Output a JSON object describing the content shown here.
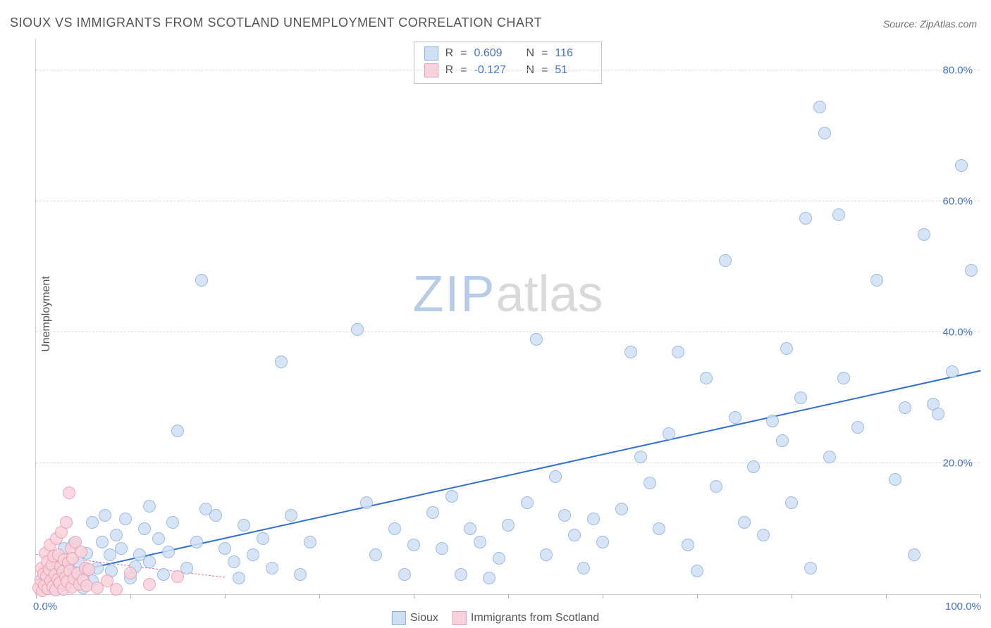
{
  "title": "SIOUX VS IMMIGRANTS FROM SCOTLAND UNEMPLOYMENT CORRELATION CHART",
  "source_label": "Source: ",
  "source_name": "ZipAtlas.com",
  "y_axis_title": "Unemployment",
  "watermark_a": "ZIP",
  "watermark_b": "atlas",
  "chart": {
    "type": "scatter",
    "background_color": "#ffffff",
    "grid_color": "#d8d8d8",
    "axis_color": "#d0d0d0",
    "xlim": [
      0,
      100
    ],
    "ylim": [
      0,
      85
    ],
    "x_ticks": [
      0,
      10,
      20,
      30,
      40,
      50,
      60,
      70,
      80,
      90,
      100
    ],
    "x_tick_labels": {
      "0": "0.0%",
      "100": "100.0%"
    },
    "y_ticks": [
      20,
      40,
      60,
      80
    ],
    "y_tick_labels": {
      "20": "20.0%",
      "40": "40.0%",
      "60": "60.0%",
      "80": "80.0%"
    },
    "x_label_color": "#4472c4",
    "y_label_color": "#4472c4",
    "label_fontsize": 15,
    "marker_radius": 9,
    "marker_border_width": 1.2,
    "series": [
      {
        "name": "Sioux",
        "fill": "#cfe0f5",
        "stroke": "#8ab0e0",
        "r_value": "0.609",
        "n_value": "116",
        "trend": {
          "x1": 0,
          "y1": 2,
          "x2": 100,
          "y2": 34,
          "color": "#2f6fd0",
          "width": 2.5,
          "dash": "solid"
        },
        "points": [
          [
            1,
            1
          ],
          [
            1.5,
            2
          ],
          [
            2,
            0.8
          ],
          [
            2.2,
            3
          ],
          [
            2.5,
            1.2
          ],
          [
            2.7,
            2.4
          ],
          [
            3,
            4.5
          ],
          [
            3,
            7
          ],
          [
            3.2,
            1.5
          ],
          [
            3.5,
            2.2
          ],
          [
            4,
            7.8
          ],
          [
            4,
            3.2
          ],
          [
            4.5,
            5
          ],
          [
            5,
            1
          ],
          [
            5.2,
            3.6
          ],
          [
            5.4,
            6.2
          ],
          [
            6,
            11
          ],
          [
            6,
            2
          ],
          [
            6.5,
            4
          ],
          [
            7,
            8
          ],
          [
            7.3,
            12
          ],
          [
            7.8,
            6
          ],
          [
            8,
            3.5
          ],
          [
            8.5,
            9
          ],
          [
            9,
            7
          ],
          [
            9.5,
            11.5
          ],
          [
            10,
            2.5
          ],
          [
            10.5,
            4.2
          ],
          [
            11,
            6
          ],
          [
            11.5,
            10
          ],
          [
            12,
            5
          ],
          [
            12,
            13.5
          ],
          [
            13,
            8.5
          ],
          [
            13.5,
            3
          ],
          [
            14,
            6.5
          ],
          [
            14.5,
            11
          ],
          [
            15,
            25
          ],
          [
            16,
            4
          ],
          [
            17,
            8
          ],
          [
            17.5,
            48
          ],
          [
            18,
            13
          ],
          [
            19,
            12
          ],
          [
            20,
            7
          ],
          [
            21,
            5
          ],
          [
            21.5,
            2.5
          ],
          [
            22,
            10.5
          ],
          [
            23,
            6
          ],
          [
            24,
            8.5
          ],
          [
            25,
            4
          ],
          [
            26,
            35.5
          ],
          [
            27,
            12
          ],
          [
            28,
            3
          ],
          [
            29,
            8
          ],
          [
            34,
            40.5
          ],
          [
            35,
            14
          ],
          [
            36,
            6
          ],
          [
            38,
            10
          ],
          [
            39,
            3
          ],
          [
            40,
            7.5
          ],
          [
            42,
            12.5
          ],
          [
            43,
            7
          ],
          [
            44,
            15
          ],
          [
            45,
            3
          ],
          [
            46,
            10
          ],
          [
            47,
            8
          ],
          [
            48,
            2.5
          ],
          [
            49,
            5.5
          ],
          [
            50,
            10.5
          ],
          [
            52,
            14
          ],
          [
            53,
            39
          ],
          [
            54,
            6
          ],
          [
            55,
            18
          ],
          [
            56,
            12
          ],
          [
            57,
            9
          ],
          [
            58,
            4
          ],
          [
            59,
            11.5
          ],
          [
            60,
            8
          ],
          [
            62,
            13
          ],
          [
            63,
            37
          ],
          [
            64,
            21
          ],
          [
            65,
            17
          ],
          [
            66,
            10
          ],
          [
            67,
            24.5
          ],
          [
            68,
            37
          ],
          [
            69,
            7.5
          ],
          [
            70,
            3.5
          ],
          [
            71,
            33
          ],
          [
            72,
            16.5
          ],
          [
            73,
            51
          ],
          [
            74,
            27
          ],
          [
            75,
            11
          ],
          [
            76,
            19.5
          ],
          [
            77,
            9
          ],
          [
            78,
            26.5
          ],
          [
            79,
            23.5
          ],
          [
            79.5,
            37.5
          ],
          [
            80,
            14
          ],
          [
            81,
            30
          ],
          [
            81.5,
            57.5
          ],
          [
            82,
            4
          ],
          [
            83,
            74.5
          ],
          [
            83.5,
            70.5
          ],
          [
            84,
            21
          ],
          [
            85,
            58
          ],
          [
            85.5,
            33
          ],
          [
            87,
            25.5
          ],
          [
            89,
            48
          ],
          [
            91,
            17.5
          ],
          [
            92,
            28.5
          ],
          [
            93,
            6
          ],
          [
            94,
            55
          ],
          [
            95,
            29
          ],
          [
            95.5,
            27.5
          ],
          [
            97,
            34
          ],
          [
            98,
            65.5
          ],
          [
            99,
            49.5
          ]
        ]
      },
      {
        "name": "Immigrants from Scotland",
        "fill": "#f8d2dc",
        "stroke": "#e89ab0",
        "r_value": "-0.127",
        "n_value": "51",
        "trend": {
          "x1": 0,
          "y1": 6,
          "x2": 20,
          "y2": 2.5,
          "color": "#e07090",
          "width": 1.5,
          "dash": "dashed"
        },
        "points": [
          [
            0.3,
            1
          ],
          [
            0.5,
            2.2
          ],
          [
            0.6,
            4
          ],
          [
            0.7,
            0.5
          ],
          [
            0.8,
            3.1
          ],
          [
            0.9,
            1.4
          ],
          [
            1.0,
            6.2
          ],
          [
            1.1,
            2.8
          ],
          [
            1.2,
            5.0
          ],
          [
            1.3,
            0.9
          ],
          [
            1.4,
            3.8
          ],
          [
            1.5,
            7.5
          ],
          [
            1.6,
            2.0
          ],
          [
            1.7,
            4.5
          ],
          [
            1.8,
            1.2
          ],
          [
            1.9,
            5.8
          ],
          [
            2.0,
            3.0
          ],
          [
            2.1,
            0.6
          ],
          [
            2.2,
            8.5
          ],
          [
            2.3,
            2.3
          ],
          [
            2.4,
            6.0
          ],
          [
            2.5,
            1.7
          ],
          [
            2.6,
            4.2
          ],
          [
            2.7,
            9.5
          ],
          [
            2.8,
            3.4
          ],
          [
            2.9,
            0.8
          ],
          [
            3.0,
            5.3
          ],
          [
            3.1,
            2.6
          ],
          [
            3.2,
            11.0
          ],
          [
            3.3,
            1.9
          ],
          [
            3.4,
            4.8
          ],
          [
            3.5,
            15.5
          ],
          [
            3.6,
            3.6
          ],
          [
            3.7,
            7.0
          ],
          [
            3.8,
            1.1
          ],
          [
            3.9,
            5.5
          ],
          [
            4.0,
            2.4
          ],
          [
            4.2,
            8.0
          ],
          [
            4.4,
            3.2
          ],
          [
            4.6,
            1.5
          ],
          [
            4.8,
            6.5
          ],
          [
            5.0,
            2.1
          ],
          [
            5.2,
            4.0
          ],
          [
            5.4,
            1.3
          ],
          [
            5.6,
            3.8
          ],
          [
            6.5,
            1.0
          ],
          [
            7.5,
            2.0
          ],
          [
            8.5,
            0.8
          ],
          [
            10.0,
            3.2
          ],
          [
            12.0,
            1.5
          ],
          [
            15.0,
            2.7
          ]
        ]
      }
    ]
  },
  "legend_top": {
    "r_label": "R",
    "n_label": "N",
    "equals": "="
  },
  "legend_bottom": {
    "items": [
      "Sioux",
      "Immigrants from Scotland"
    ]
  }
}
